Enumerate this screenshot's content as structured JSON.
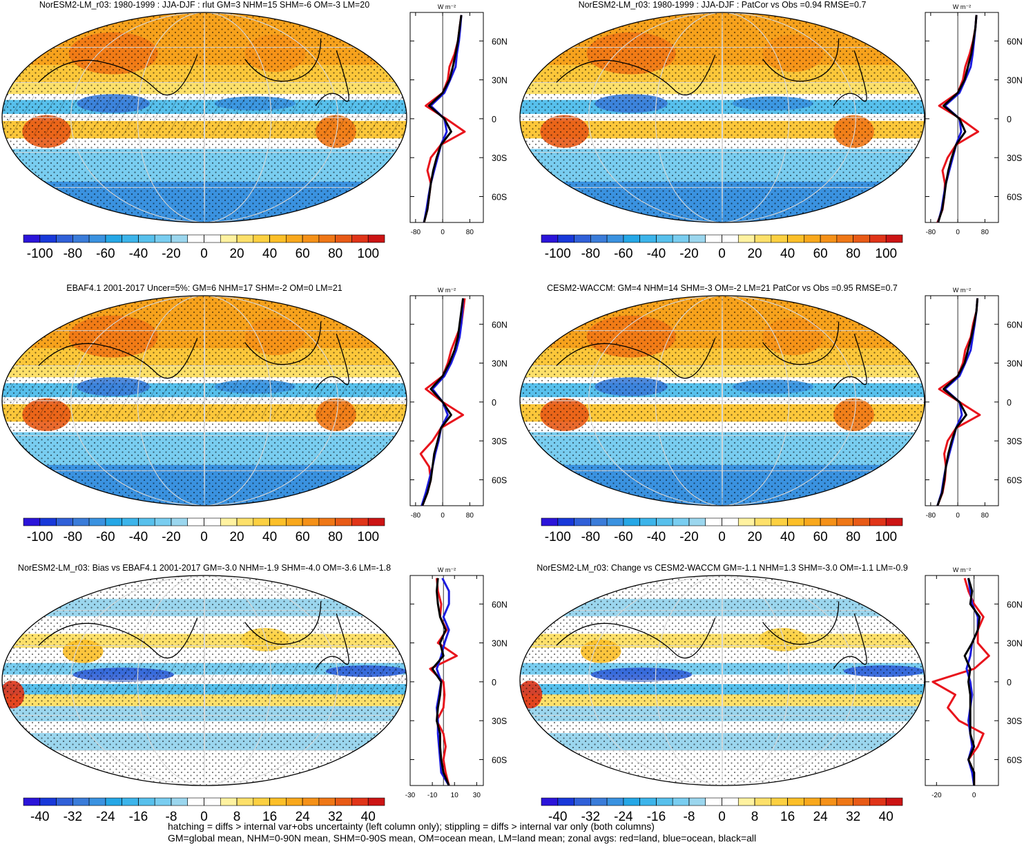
{
  "palettes": {
    "main": [
      "#2b14d9",
      "#1838d9",
      "#3060d8",
      "#3a7cd9",
      "#3a92e0",
      "#25a7e6",
      "#3cb4ea",
      "#57c0ec",
      "#79cdf0",
      "#9bd6ee",
      "#ffffff",
      "#ffffff",
      "#fff2a0",
      "#fde06a",
      "#fcd041",
      "#fcbf28",
      "#f9a81c",
      "#f59118",
      "#ef7716",
      "#e85a16",
      "#e03418",
      "#cc1414"
    ]
  },
  "panels": [
    {
      "title": "NorESM2-LM_r03: 1980-1999 : JJA-DJF : rlut GM=3 NHM=15 SHM=-6 OM=-3 LM=20",
      "colorbar": {
        "palette": "main",
        "lim": [
          -110,
          110
        ],
        "ticks": [
          -100,
          -80,
          -60,
          -40,
          -20,
          0,
          20,
          40,
          60,
          80,
          100
        ]
      },
      "zonal": {
        "type": "line",
        "units": "W m⁻²",
        "xlim": [
          -96,
          120
        ],
        "xticks": [
          -80,
          0,
          80
        ],
        "ylim": [
          -80,
          82
        ],
        "yticks": [
          {
            "value": 60,
            "label": "60N"
          },
          {
            "value": 30,
            "label": "30N"
          },
          0,
          {
            "value": -30,
            "label": "30S"
          },
          {
            "value": -60,
            "label": "60S"
          }
        ],
        "lat": [
          -80,
          -70,
          -60,
          -50,
          -40,
          -30,
          -20,
          -10,
          0,
          10,
          20,
          30,
          40,
          50,
          60,
          70,
          80
        ],
        "series": [
          {
            "color": "#e8141c",
            "values": [
              -55,
              -45,
              -40,
              -35,
              -45,
              -35,
              -5,
              65,
              10,
              -50,
              0,
              15,
              20,
              35,
              45,
              50,
              55
            ]
          },
          {
            "color": "#1c1ce0",
            "values": [
              -55,
              -48,
              -42,
              -35,
              -25,
              -15,
              -5,
              12,
              5,
              -35,
              5,
              22,
              38,
              42,
              48,
              52,
              55
            ]
          },
          {
            "color": "#000000",
            "values": [
              -55,
              -45,
              -40,
              -35,
              -28,
              -18,
              -5,
              25,
              5,
              -40,
              0,
              20,
              30,
              38,
              45,
              50,
              55
            ]
          }
        ]
      }
    },
    {
      "title": "NorESM2-LM_r03: 1980-1999 : JJA-DJF : PatCor vs Obs =0.94 RMSE=0.7",
      "colorbar": {
        "palette": "main",
        "lim": [
          -110,
          110
        ],
        "ticks": [
          -100,
          -80,
          -60,
          -40,
          -20,
          0,
          20,
          40,
          60,
          80,
          100
        ]
      },
      "zonal": {
        "type": "line",
        "units": "W m⁻²",
        "xlim": [
          -96,
          120
        ],
        "xticks": [
          -80,
          0,
          80
        ],
        "ylim": [
          -80,
          82
        ],
        "yticks": [
          {
            "value": 60,
            "label": "60N"
          },
          {
            "value": 30,
            "label": "30N"
          },
          0,
          {
            "value": -30,
            "label": "30S"
          },
          {
            "value": -60,
            "label": "60S"
          }
        ],
        "lat": [
          -80,
          -70,
          -60,
          -50,
          -40,
          -30,
          -20,
          -10,
          0,
          10,
          20,
          30,
          40,
          50,
          60,
          70,
          80
        ],
        "series": [
          {
            "color": "#e8141c",
            "values": [
              -60,
              -45,
              -40,
              -38,
              -45,
              -30,
              -5,
              60,
              8,
              -55,
              0,
              15,
              22,
              35,
              45,
              52,
              55
            ]
          },
          {
            "color": "#1c1ce0",
            "values": [
              -58,
              -48,
              -42,
              -35,
              -25,
              -15,
              -5,
              10,
              5,
              -38,
              5,
              22,
              38,
              44,
              48,
              52,
              55
            ]
          },
          {
            "color": "#000000",
            "values": [
              -58,
              -46,
              -40,
              -35,
              -28,
              -18,
              -5,
              22,
              5,
              -42,
              0,
              20,
              30,
              40,
              46,
              52,
              55
            ]
          }
        ]
      }
    },
    {
      "title": "EBAF4.1 2001-2017 Uncer=5%: GM=6 NHM=17 SHM=-2 OM=0 LM=21",
      "colorbar": {
        "palette": "main",
        "lim": [
          -110,
          110
        ],
        "ticks": [
          -100,
          -80,
          -60,
          -40,
          -20,
          0,
          20,
          40,
          60,
          80,
          100
        ]
      },
      "zonal": {
        "type": "line",
        "units": "W m⁻²",
        "xlim": [
          -96,
          120
        ],
        "xticks": [
          -80,
          0,
          80
        ],
        "ylim": [
          -80,
          82
        ],
        "yticks": [
          {
            "value": 60,
            "label": "60N"
          },
          {
            "value": 30,
            "label": "30N"
          },
          0,
          {
            "value": -30,
            "label": "30S"
          },
          {
            "value": -60,
            "label": "60S"
          }
        ],
        "lat": [
          -80,
          -70,
          -60,
          -50,
          -40,
          -30,
          -20,
          -10,
          0,
          10,
          20,
          30,
          40,
          50,
          60,
          70,
          80
        ],
        "series": [
          {
            "color": "#e8141c",
            "values": [
              -60,
              -45,
              -35,
              -40,
              -65,
              -30,
              -5,
              60,
              0,
              -50,
              0,
              15,
              25,
              40,
              55,
              60,
              65
            ]
          },
          {
            "color": "#1c1ce0",
            "values": [
              -62,
              -50,
              -40,
              -30,
              -22,
              -12,
              -5,
              15,
              0,
              -30,
              5,
              25,
              40,
              50,
              55,
              58,
              60
            ]
          },
          {
            "color": "#000000",
            "values": [
              -60,
              -45,
              -35,
              -30,
              -25,
              -15,
              -5,
              25,
              0,
              -35,
              0,
              20,
              35,
              45,
              50,
              55,
              60
            ]
          }
        ]
      }
    },
    {
      "title": "CESM2-WACCM: GM=4 NHM=14 SHM=-3 OM=-2 LM=21 PatCor vs Obs =0.95 RMSE=0.7",
      "colorbar": {
        "palette": "main",
        "lim": [
          -110,
          110
        ],
        "ticks": [
          -100,
          -80,
          -60,
          -40,
          -20,
          0,
          20,
          40,
          60,
          80,
          100
        ]
      },
      "zonal": {
        "type": "line",
        "units": "W m⁻²",
        "xlim": [
          -96,
          120
        ],
        "xticks": [
          -80,
          0,
          80
        ],
        "ylim": [
          -80,
          82
        ],
        "yticks": [
          {
            "value": 60,
            "label": "60N"
          },
          {
            "value": 30,
            "label": "30N"
          },
          0,
          {
            "value": -30,
            "label": "30S"
          },
          {
            "value": -60,
            "label": "60S"
          }
        ],
        "lat": [
          -80,
          -70,
          -60,
          -50,
          -40,
          -30,
          -20,
          -10,
          0,
          10,
          20,
          30,
          40,
          50,
          60,
          70,
          80
        ],
        "series": [
          {
            "color": "#e8141c",
            "values": [
              -60,
              -45,
              -38,
              -35,
              -40,
              -30,
              -5,
              65,
              5,
              -55,
              0,
              15,
              22,
              38,
              45,
              55,
              58
            ]
          },
          {
            "color": "#1c1ce0",
            "values": [
              -60,
              -48,
              -42,
              -35,
              -25,
              -15,
              -5,
              12,
              5,
              -38,
              5,
              22,
              38,
              44,
              50,
              55,
              58
            ]
          },
          {
            "color": "#000000",
            "values": [
              -60,
              -46,
              -40,
              -35,
              -28,
              -18,
              -5,
              25,
              5,
              -42,
              0,
              20,
              30,
              40,
              48,
              55,
              58
            ]
          }
        ]
      }
    },
    {
      "title": "NorESM2-LM_r03: Bias vs EBAF4.1 2001-2017 GM=-3.0 NHM=-1.9 SHM=-4.0 OM=-3.6 LM=-1.8",
      "colorbar": {
        "palette": "main",
        "lim": [
          -44,
          44
        ],
        "ticks": [
          -40,
          -32,
          -24,
          -16,
          -8,
          0,
          8,
          16,
          24,
          32,
          40
        ]
      },
      "zonal": {
        "type": "line",
        "units": "W m⁻²",
        "xlim": [
          -30,
          36
        ],
        "xticks": [
          -30,
          -10,
          10,
          30
        ],
        "ylim": [
          -80,
          82
        ],
        "yticks": [
          {
            "value": 60,
            "label": "60N"
          },
          {
            "value": 30,
            "label": "30N"
          },
          0,
          {
            "value": -30,
            "label": "30S"
          },
          {
            "value": -60,
            "label": "60S"
          }
        ],
        "lat": [
          -80,
          -70,
          -60,
          -50,
          -40,
          -30,
          -20,
          -10,
          0,
          10,
          20,
          30,
          40,
          50,
          60,
          70,
          80
        ],
        "series": [
          {
            "color": "#e8141c",
            "values": [
              5,
              2,
              0,
              2,
              0,
              -6,
              0,
              1,
              0,
              -12,
              12,
              -5,
              3,
              -3,
              -2,
              -5,
              -6
            ]
          },
          {
            "color": "#1c1ce0",
            "values": [
              5,
              -2,
              -3,
              -4,
              -5,
              -5,
              -6,
              -4,
              -2,
              -6,
              -2,
              1,
              5,
              0,
              5,
              5,
              -1
            ]
          },
          {
            "color": "#000000",
            "values": [
              5,
              0,
              -2,
              -3,
              -3,
              -6,
              -5,
              -3,
              -2,
              -10,
              0,
              -3,
              2,
              -3,
              -5,
              -6,
              -5
            ]
          }
        ]
      }
    },
    {
      "title": "NorESM2-LM_r03: Change vs CESM2-WACCM GM=-1.1 NHM=1.3 SHM=-3.0 OM=-1.1 LM=-0.9",
      "colorbar": {
        "palette": "main",
        "lim": [
          -44,
          44
        ],
        "ticks": [
          -40,
          -32,
          -24,
          -16,
          -8,
          0,
          8,
          16,
          24,
          32,
          40
        ]
      },
      "zonal": {
        "type": "line",
        "units": "W m⁻²",
        "xlim": [
          -26,
          13
        ],
        "xticks": [
          -20,
          0
        ],
        "ylim": [
          -80,
          82
        ],
        "yticks": [
          {
            "value": 60,
            "label": "60N"
          },
          {
            "value": 30,
            "label": "30N"
          },
          0,
          {
            "value": -30,
            "label": "30S"
          },
          {
            "value": -60,
            "label": "60S"
          }
        ],
        "lat": [
          -80,
          -70,
          -60,
          -50,
          -40,
          -30,
          -20,
          -10,
          0,
          10,
          20,
          30,
          40,
          50,
          60,
          70,
          80
        ],
        "series": [
          {
            "color": "#e8141c",
            "values": [
              0,
              0,
              -3,
              2,
              5,
              -8,
              -14,
              -10,
              -22,
              0,
              8,
              2,
              2,
              5,
              0,
              -3,
              -5
            ]
          },
          {
            "color": "#1c1ce0",
            "values": [
              0,
              -1,
              -3,
              -1,
              -2,
              -3,
              -2,
              -1,
              -2,
              -4,
              -2,
              -1,
              2,
              2,
              -1,
              -2,
              -3
            ]
          },
          {
            "color": "#000000",
            "values": [
              0,
              0,
              -3,
              0,
              -2,
              -2,
              -2,
              -2,
              -3,
              -2,
              -5,
              -1,
              2,
              3,
              -2,
              -1,
              -3
            ]
          }
        ]
      }
    }
  ],
  "footer": [
    "hatching = diffs > internal var+obs uncertainty (left column only); stippling = diffs > internal var only (both columns)",
    "GM=global mean, NHM=0-90N mean, SHM=0-90S mean, OM=ocean mean, LM=land mean; zonal avgs: red=land, blue=ocean, black=all"
  ]
}
